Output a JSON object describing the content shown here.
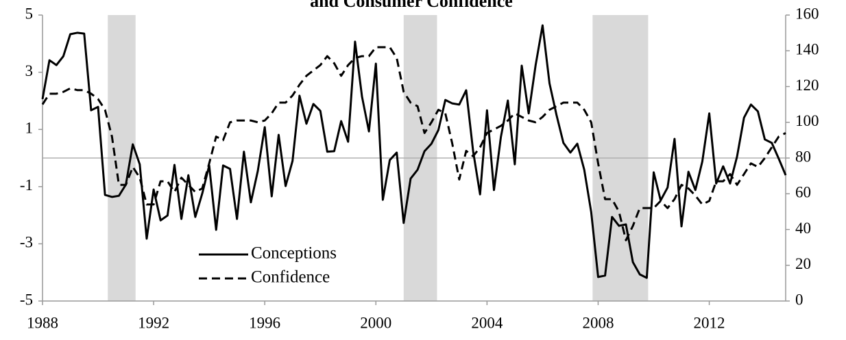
{
  "chart_data": {
    "type": "line",
    "title": "and Consumer Confidence",
    "x": [
      1988,
      1988.25,
      1988.5,
      1988.75,
      1989,
      1989.25,
      1989.5,
      1989.75,
      1990,
      1990.25,
      1990.5,
      1990.75,
      1991,
      1991.25,
      1991.5,
      1991.75,
      1992,
      1992.25,
      1992.5,
      1992.75,
      1993,
      1993.25,
      1993.5,
      1993.75,
      1994,
      1994.25,
      1994.5,
      1994.75,
      1995,
      1995.25,
      1995.5,
      1995.75,
      1996,
      1996.25,
      1996.5,
      1996.75,
      1997,
      1997.25,
      1997.5,
      1997.75,
      1998,
      1998.25,
      1998.5,
      1998.75,
      1999,
      1999.25,
      1999.5,
      1999.75,
      2000,
      2000.25,
      2000.5,
      2000.75,
      2001,
      2001.25,
      2001.5,
      2001.75,
      2002,
      2002.25,
      2002.5,
      2002.75,
      2003,
      2003.25,
      2003.5,
      2003.75,
      2004,
      2004.25,
      2004.5,
      2004.75,
      2005,
      2005.25,
      2005.5,
      2005.75,
      2006,
      2006.25,
      2006.5,
      2006.75,
      2007,
      2007.25,
      2007.5,
      2007.75,
      2008,
      2008.25,
      2008.5,
      2008.75,
      2009,
      2009.25,
      2009.5,
      2009.75,
      2010,
      2010.25,
      2010.5,
      2010.75,
      2011,
      2011.25,
      2011.5,
      2011.75,
      2012,
      2012.25,
      2012.5,
      2012.75,
      2013,
      2013.25,
      2013.5,
      2013.75,
      2014,
      2014.25,
      2014.5,
      2014.75
    ],
    "series": [
      {
        "name": "Conceptions",
        "color": "#000000",
        "linestyle": "solid",
        "values": [
          2.06,
          3.42,
          3.25,
          3.56,
          4.33,
          4.38,
          4.35,
          1.67,
          1.79,
          -1.29,
          -1.36,
          -1.32,
          -0.93,
          0.48,
          -0.22,
          -2.82,
          -1.1,
          -2.18,
          -2.01,
          -0.24,
          -2.13,
          -0.6,
          -2.06,
          -1.24,
          -0.26,
          -2.51,
          -0.26,
          -0.38,
          -2.13,
          0.22,
          -1.55,
          -0.45,
          1.08,
          -1.34,
          0.81,
          -0.98,
          -0.1,
          2.18,
          1.2,
          1.89,
          1.65,
          0.22,
          0.24,
          1.29,
          0.57,
          4.07,
          2.15,
          0.93,
          3.3,
          -1.46,
          -0.07,
          0.19,
          -2.27,
          -0.72,
          -0.41,
          0.24,
          0.5,
          0.98,
          2.03,
          1.91,
          1.87,
          2.37,
          0.24,
          -1.27,
          1.67,
          -1.12,
          0.74,
          2.01,
          -0.22,
          3.23,
          1.56,
          3.25,
          4.64,
          2.61,
          1.51,
          0.53,
          0.19,
          0.5,
          -0.41,
          -1.89,
          -4.16,
          -4.11,
          -2.06,
          -2.37,
          -2.32,
          -3.64,
          -4.07,
          -4.19,
          -0.5,
          -1.48,
          -1.03,
          0.67,
          -2.39,
          -0.48,
          -1.12,
          -0.12,
          1.56,
          -0.89,
          -0.29,
          -0.89,
          0.05,
          1.41,
          1.87,
          1.63,
          0.65,
          0.53,
          -0.02,
          -0.6
        ]
      },
      {
        "name": "Confidence",
        "color": "#000000",
        "linestyle": "dashed",
        "axis": "y2",
        "values": [
          110,
          116,
          116,
          117,
          119,
          118,
          118,
          116,
          113,
          107,
          92,
          65,
          65,
          75,
          69,
          54,
          54,
          67,
          67,
          61,
          69,
          65,
          61,
          63,
          77,
          92,
          90,
          100,
          101,
          101,
          101,
          100,
          101,
          105,
          111,
          111,
          115,
          121,
          126,
          129,
          132,
          137,
          133,
          126,
          132,
          136,
          137,
          137,
          142,
          142,
          142,
          136,
          117,
          111,
          109,
          94,
          100,
          107,
          105,
          88,
          68,
          84,
          81,
          86,
          94,
          96,
          98,
          101,
          105,
          103,
          101,
          100,
          103,
          107,
          109,
          111,
          111,
          111,
          107,
          100,
          77,
          57,
          57,
          50,
          34,
          42,
          52,
          52,
          52,
          56,
          52,
          57,
          65,
          63,
          59,
          54,
          56,
          67,
          67,
          71,
          65,
          71,
          77,
          75,
          80,
          86,
          92,
          94
        ]
      }
    ],
    "shaded_regions": [
      [
        1990.35,
        1991.35
      ],
      [
        2001.0,
        2002.2
      ],
      [
        2007.8,
        2009.8
      ]
    ],
    "shade_color": "#d9d9d9",
    "xlim": [
      1988,
      2014.75
    ],
    "xticks": [
      1988,
      1992,
      1996,
      2000,
      2004,
      2008,
      2012
    ],
    "ylim": [
      -5,
      5
    ],
    "yticks": [
      5,
      3,
      1,
      -1,
      -3,
      -5
    ],
    "y2lim": [
      0,
      160
    ],
    "y2ticks": [
      160,
      140,
      120,
      100,
      80,
      60,
      40,
      20,
      0
    ],
    "zero_line": true,
    "legend": "lower left"
  }
}
